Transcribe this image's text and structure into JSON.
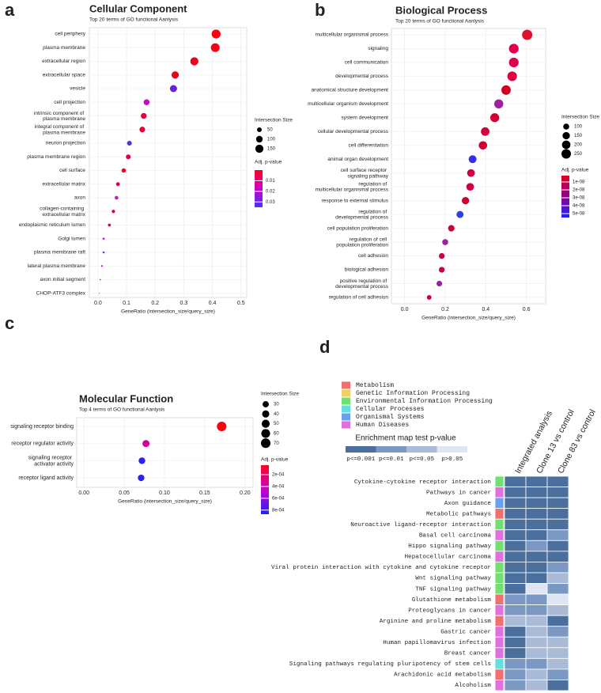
{
  "chart_data": [
    {
      "type": "dot",
      "panel_label": "a",
      "title": "Cellular Component",
      "subtitle": "Top 20 terms of GO functional Aanlysis",
      "xlabel": "GeneRatio (intersection_size/query_size)",
      "categories": [
        "cell periphery",
        "plasma membrane",
        "extracellular region",
        "extracellular space",
        "vesicle",
        "cell projection",
        "intrinsic component of plasma membrane",
        "integral component of plasma membrane",
        "neuron projection",
        "plasma membrane region",
        "cell surface",
        "extracellular matrix",
        "axon",
        "collagen-containing extracellular matrix",
        "endoplasmic reticulum lumen",
        "Golgi lumen",
        "plasma membrane raft",
        "lateral plasma membrane",
        "axon initial segment",
        "CHOP-ATF3 complex"
      ],
      "values": [
        0.413,
        0.41,
        0.337,
        0.27,
        0.264,
        0.17,
        0.16,
        0.155,
        0.11,
        0.106,
        0.09,
        0.07,
        0.065,
        0.054,
        0.04,
        0.02,
        0.02,
        0.014,
        0.008,
        0.005
      ],
      "sizes": [
        180,
        175,
        150,
        120,
        115,
        80,
        75,
        72,
        52,
        50,
        42,
        33,
        31,
        25,
        19,
        10,
        9,
        7,
        4,
        2
      ],
      "colors": [
        "#ff0010",
        "#ff0010",
        "#ee0020",
        "#f00018",
        "#6a1fd8",
        "#c010c0",
        "#e8003a",
        "#e8003a",
        "#5030e0",
        "#dd0050",
        "#e80030",
        "#e00040",
        "#c020b0",
        "#e00040",
        "#e00040",
        "#c020c0",
        "#3040f0",
        "#b020c0",
        "#a030d0",
        "#a030d0"
      ],
      "xlim": [
        -0.03,
        0.52
      ],
      "xticks": [
        {
          "value": 0,
          "label": "0.0"
        },
        0.1,
        0.2,
        0.3,
        0.4,
        0.5
      ],
      "size_legend": {
        "title": "Intersection Size",
        "values": [
          50,
          100,
          150
        ]
      },
      "color_legend": {
        "title": "Adj. p-value",
        "lim": [
          0,
          0.035
        ],
        "ticks": [
          0.01,
          0.02,
          0.03
        ],
        "colors": [
          "#ff0020",
          "#cc00cc",
          "#4433ff"
        ]
      }
    },
    {
      "type": "dot",
      "panel_label": "b",
      "title": "Biological Process",
      "subtitle": "Top 20 terms of GO functional Aanlysis",
      "xlabel": "GeneRatio (intersection_size/query_size)",
      "categories": [
        "multicellular organismal process",
        "signaling",
        "cell communication",
        "developmental process",
        "anatomical structure development",
        "multicellular organism development",
        "system development",
        "cellular developmental process",
        "cell differentiation",
        "animal organ development",
        "cell surface receptor signaling pathway",
        "regulation of multicellular organismal process",
        "response to external stimulus",
        "regulation of developmental process",
        "cell population proliferation",
        "regulation of cell population proliferation",
        "cell adhesion",
        "biological adhesion",
        "positive regulation of developmental process",
        "regulation of cell adhesion"
      ],
      "values": [
        0.604,
        0.538,
        0.538,
        0.53,
        0.5,
        0.464,
        0.444,
        0.397,
        0.386,
        0.335,
        0.327,
        0.323,
        0.3,
        0.273,
        0.23,
        0.2,
        0.183,
        0.183,
        0.171,
        0.121
      ],
      "sizes": [
        290,
        260,
        260,
        255,
        245,
        230,
        220,
        200,
        195,
        170,
        165,
        163,
        150,
        138,
        115,
        100,
        92,
        92,
        86,
        60
      ],
      "colors": [
        "#e0102a",
        "#e00050",
        "#e00050",
        "#e00040",
        "#d00020",
        "#a020a0",
        "#d00030",
        "#d00040",
        "#d00030",
        "#3030f0",
        "#d00040",
        "#d00040",
        "#d00030",
        "#3040e0",
        "#d00030",
        "#a020a0",
        "#d00040",
        "#d00040",
        "#9020a0",
        "#d00030"
      ],
      "xlim": [
        -0.065,
        0.695
      ],
      "xticks": [
        {
          "value": 0,
          "label": "0.0"
        },
        0.2,
        0.4,
        0.6
      ],
      "size_legend": {
        "title": "Intersection Size",
        "values": [
          100,
          150,
          200,
          250
        ]
      },
      "color_legend": {
        "title": "Adj. p-value",
        "lim": [
          2e-09,
          5.5e-08
        ],
        "ticks": [
          {
            "value": 1e-08,
            "label": "1e-08"
          },
          {
            "value": 2e-08,
            "label": "2e-08"
          },
          {
            "value": 3e-08,
            "label": "3e-08"
          },
          {
            "value": 4e-08,
            "label": "4e-08"
          },
          {
            "value": 5e-08,
            "label": "5e-08"
          }
        ],
        "colors": [
          "#e00020",
          "#900090",
          "#2020ff"
        ]
      }
    },
    {
      "type": "dot",
      "panel_label": "c",
      "title": "Molecular Function",
      "subtitle": "Top 4 terms of GO functional Aanlysis",
      "xlabel": "GeneRatio (intersection_size/query_size)",
      "categories": [
        "signaling receptor binding",
        "receptor regulator activity",
        "signaling receptor activator activity",
        "receptor ligand activity"
      ],
      "values": [
        0.171,
        0.077,
        0.072,
        0.071
      ],
      "sizes": [
        70,
        38,
        34,
        33
      ],
      "colors": [
        "#ff0010",
        "#d000a0",
        "#3020f0",
        "#3020f0"
      ],
      "xlim": [
        -0.009,
        0.21
      ],
      "xticks": [
        {
          "value": 0,
          "label": "0.00"
        },
        0.05,
        {
          "value": 0.1,
          "label": "0.10"
        },
        0.15,
        {
          "value": 0.2,
          "label": "0.20"
        }
      ],
      "size_legend": {
        "title": "Intersection Size",
        "values": [
          30,
          40,
          50,
          60,
          70
        ]
      },
      "color_legend": {
        "title": "Adj. p-value",
        "lim": [
          4e-05,
          0.00087
        ],
        "ticks": [
          {
            "value": 0.0002,
            "label": "2e-04"
          },
          {
            "value": 0.0004,
            "label": "4e-04"
          },
          {
            "value": 0.0006,
            "label": "6e-04"
          },
          {
            "value": 0.0008,
            "label": "8e-04"
          }
        ],
        "colors": [
          "#ff0020",
          "#cc00cc",
          "#2020ff"
        ]
      }
    },
    {
      "type": "heatmap",
      "panel_label": "d",
      "groups": [
        "Metabolism",
        "Genetic Information Processing",
        "Environmental Information Processing",
        "Cellular Processes",
        "Organismal Systems",
        "Human Diseases"
      ],
      "group_colors": [
        "#f07070",
        "#f0d060",
        "#70e070",
        "#60e0e0",
        "#6aa0f0",
        "#e070e0"
      ],
      "legend_title": "Enrichment map test p-value",
      "levels": [
        "p<=0.001",
        "p<=0.01",
        "p<=0.05",
        "p>0.05"
      ],
      "level_colors": [
        "#4a6f9c",
        "#7b98c2",
        "#aabbd8",
        "#dee6f4"
      ],
      "columns": [
        "Integrated analysis",
        "Clone 13 vs control",
        "Clone 83 vs control"
      ],
      "rows": [
        "Cytokine-cytokine receptor interaction",
        "Pathways in cancer",
        "Axon guidance",
        "Metabolic pathways",
        "Neuroactive ligand-receptor interaction",
        "Basal cell carcinoma",
        "Hippo signaling pathway",
        "Hepatocellular carcinoma",
        "Viral protein interaction with cytokine and cytokine receptor",
        "Wnt signaling pathway",
        "TNF signaling pathway",
        "Glutathione metabolism",
        "Proteoglycans in cancer",
        "Arginine and proline metabolism",
        "Gastric cancer",
        "Human papillomavirus infection",
        "Breast cancer",
        "Signaling pathways regulating pluripotency of stem cells",
        "Arachidonic acid metabolism",
        "Alcoholism"
      ],
      "row_groups": [
        2,
        5,
        4,
        0,
        2,
        5,
        2,
        5,
        2,
        2,
        2,
        0,
        5,
        0,
        5,
        5,
        5,
        3,
        0,
        5
      ],
      "cells": [
        [
          0,
          0,
          0
        ],
        [
          0,
          0,
          0
        ],
        [
          0,
          0,
          0
        ],
        [
          0,
          0,
          0
        ],
        [
          0,
          0,
          0
        ],
        [
          0,
          0,
          1
        ],
        [
          0,
          1,
          0
        ],
        [
          0,
          0,
          0
        ],
        [
          0,
          0,
          1
        ],
        [
          0,
          0,
          2
        ],
        [
          0,
          3,
          1
        ],
        [
          1,
          1,
          3
        ],
        [
          1,
          1,
          2
        ],
        [
          2,
          2,
          0
        ],
        [
          0,
          2,
          1
        ],
        [
          0,
          2,
          2
        ],
        [
          0,
          2,
          2
        ],
        [
          1,
          1,
          2
        ],
        [
          1,
          2,
          1
        ],
        [
          1,
          2,
          0
        ]
      ]
    }
  ]
}
